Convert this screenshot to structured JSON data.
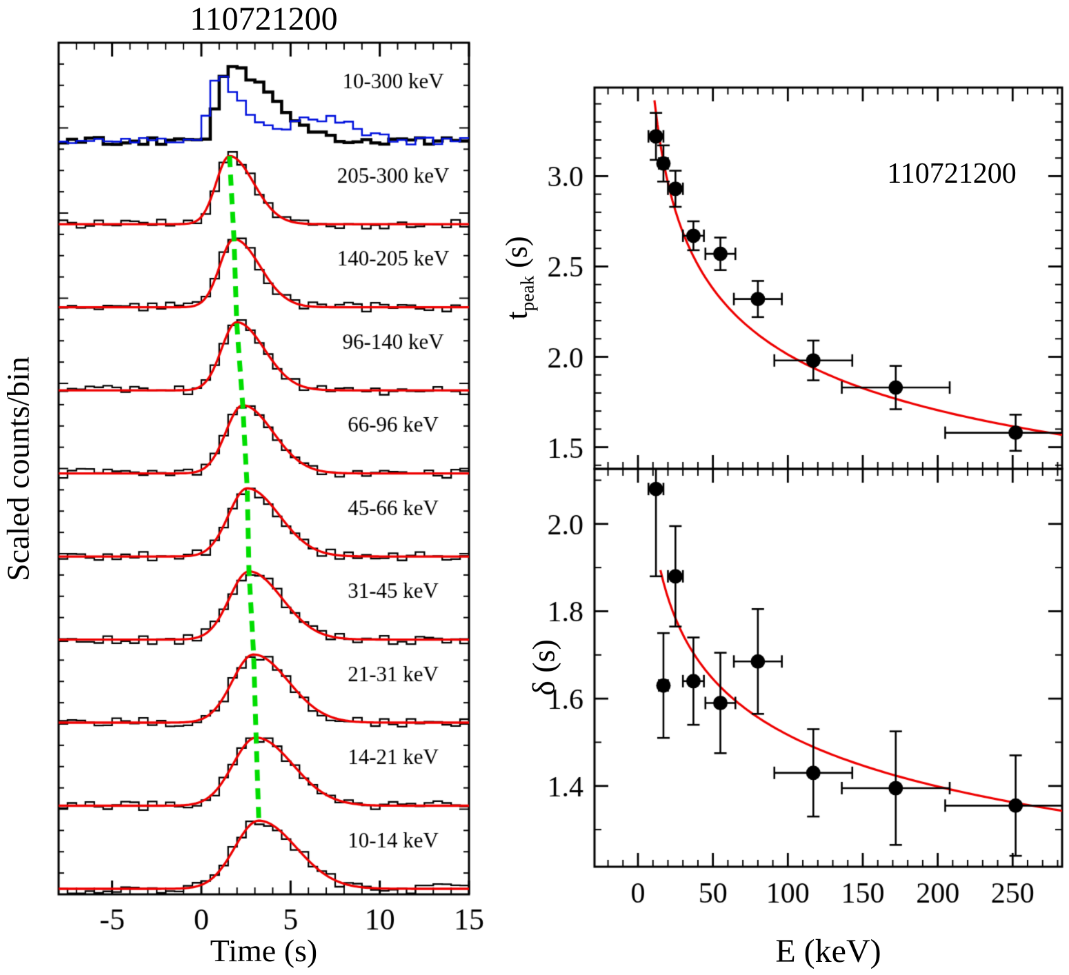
{
  "figure": {
    "title": "110721200",
    "left": {
      "xlabel": "Time (s)",
      "ylabel": "Scaled counts/bin"
    },
    "right": {
      "annotation": "110721200",
      "xlabel": "E (keV)",
      "ylabel_top_main": "t",
      "ylabel_top_sub": "peak",
      "ylabel_top_unit": "(s)",
      "ylabel_bottom": "δ (s)"
    }
  },
  "chart_data": [
    {
      "id": "energy-resolved-lightcurves",
      "type": "line",
      "title": "110721200",
      "xlabel": "Time (s)",
      "ylabel": "Scaled counts/bin",
      "xlim": [
        -8,
        15
      ],
      "xticks": [
        -5,
        0,
        5,
        10,
        15
      ],
      "xtick_labels": [
        "-5",
        "0",
        "5",
        "10",
        "15"
      ],
      "colors": {
        "histogram": "#000000",
        "composite_overlay": "#0011dd",
        "pulse_fit": "#ee0000",
        "peak_track": "#00dd00"
      },
      "bands": [
        {
          "label": "10-300 keV",
          "components": [
            {
              "color": "#000000",
              "lw": 4.5,
              "tpeak": 1.5,
              "rise": 0.55,
              "decay": 2.3,
              "amp": 0.95
            },
            {
              "color": "#0011dd",
              "lw": 2.6,
              "tpeak": 0.9,
              "rise": 0.45,
              "decay": 1.3,
              "amp": 0.8,
              "bump": {
                "t": 6.6,
                "sigma": 1.8,
                "amp": 0.3
              }
            }
          ]
        },
        {
          "label": "205-300 keV",
          "tpeak": 1.58,
          "rise": 0.75,
          "decay": 1.35
        },
        {
          "label": "140-205 keV",
          "tpeak": 1.83,
          "rise": 0.8,
          "decay": 1.45
        },
        {
          "label": "96-140 keV",
          "tpeak": 1.98,
          "rise": 0.85,
          "decay": 1.55
        },
        {
          "label": "66-96 keV",
          "tpeak": 2.32,
          "rise": 0.95,
          "decay": 1.7
        },
        {
          "label": "45-66 keV",
          "tpeak": 2.57,
          "rise": 1.05,
          "decay": 1.8
        },
        {
          "label": "31-45 keV",
          "tpeak": 2.67,
          "rise": 1.1,
          "decay": 1.85
        },
        {
          "label": "21-31 keV",
          "tpeak": 2.93,
          "rise": 1.2,
          "decay": 1.95
        },
        {
          "label": "14-21 keV",
          "tpeak": 3.07,
          "rise": 1.3,
          "decay": 2.05
        },
        {
          "label": "10-14 keV",
          "tpeak": 3.22,
          "rise": 1.35,
          "decay": 2.1
        }
      ]
    },
    {
      "id": "tpeak-vs-energy",
      "type": "scatter",
      "annotation": "110721200",
      "ylabel": "t_peak (s)",
      "xlim": [
        -29,
        283
      ],
      "ylim": [
        1.38,
        3.49
      ],
      "xticks": [
        0,
        50,
        100,
        150,
        200,
        250
      ],
      "xtick_labels": [
        "0",
        "50",
        "100",
        "150",
        "200",
        "250"
      ],
      "yticks": [
        1.5,
        2.0,
        2.5,
        3.0
      ],
      "ytick_labels": [
        "1.5",
        "2.0",
        "2.5",
        "3.0"
      ],
      "marker_color": "#000000",
      "curve_color": "#ee0000",
      "points": [
        {
          "x": 12,
          "xerr": 5,
          "y": 3.22,
          "yerr": 0.13
        },
        {
          "x": 17,
          "xerr": 3,
          "y": 3.07,
          "yerr": 0.1
        },
        {
          "x": 25,
          "xerr": 5,
          "y": 2.93,
          "yerr": 0.1
        },
        {
          "x": 37,
          "xerr": 7,
          "y": 2.67,
          "yerr": 0.08
        },
        {
          "x": 55,
          "xerr": 10,
          "y": 2.57,
          "yerr": 0.09
        },
        {
          "x": 80,
          "xerr": 16,
          "y": 2.32,
          "yerr": 0.1
        },
        {
          "x": 117,
          "xerr": 26,
          "y": 1.98,
          "yerr": 0.11
        },
        {
          "x": 172,
          "xerr": 36,
          "y": 1.83,
          "yerr": 0.12
        },
        {
          "x": 252,
          "xerr": 47,
          "y": 1.58,
          "yerr": 0.1
        }
      ],
      "fit_curve": {
        "type": "power-law",
        "norm": 6.08,
        "index": -0.24,
        "xmin": 11,
        "xmax": 292
      }
    },
    {
      "id": "delta-vs-energy",
      "type": "scatter",
      "xlabel": "E (keV)",
      "ylabel": "δ (s)",
      "xlim": [
        -29,
        283
      ],
      "ylim": [
        1.215,
        2.126
      ],
      "xticks": [
        0,
        50,
        100,
        150,
        200,
        250
      ],
      "xtick_labels": [
        "0",
        "50",
        "100",
        "150",
        "200",
        "250"
      ],
      "yticks": [
        1.4,
        1.6,
        1.8,
        2.0
      ],
      "ytick_labels": [
        "1.4",
        "1.6",
        "1.8",
        "2.0"
      ],
      "marker_color": "#000000",
      "curve_color": "#ee0000",
      "points": [
        {
          "x": 12,
          "xerr": 5,
          "y": 2.08,
          "yerr_lo": 0.2,
          "yerr_hi": 0.4
        },
        {
          "x": 17,
          "xerr": 3,
          "y": 1.63,
          "yerr": 0.12
        },
        {
          "x": 25,
          "xerr": 5,
          "y": 1.88,
          "yerr": 0.115
        },
        {
          "x": 37,
          "xerr": 7,
          "y": 1.64,
          "yerr": 0.1
        },
        {
          "x": 55,
          "xerr": 10,
          "y": 1.59,
          "yerr": 0.115
        },
        {
          "x": 80,
          "xerr": 16,
          "y": 1.685,
          "yerr": 0.12
        },
        {
          "x": 117,
          "xerr": 26,
          "y": 1.43,
          "yerr": 0.1
        },
        {
          "x": 172,
          "xerr": 36,
          "y": 1.395,
          "yerr": 0.13
        },
        {
          "x": 252,
          "xerr": 47,
          "y": 1.355,
          "yerr": 0.115
        }
      ],
      "fit_curve": {
        "type": "power-law",
        "norm": 2.6,
        "index": -0.117,
        "xmin": 15,
        "xmax": 292
      }
    }
  ]
}
